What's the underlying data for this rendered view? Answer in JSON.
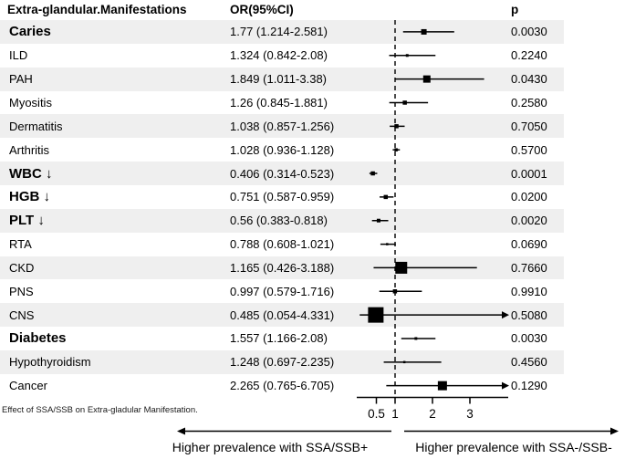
{
  "header": {
    "col_manifestation": "Extra-glandular.Manifestations",
    "col_or": "OR(95%CI)",
    "col_p": "p"
  },
  "footnote": "Effect of SSA/SSB on Extra-gladular Manifestation.",
  "axis_arrows": {
    "left_label": "Higher prevalence with SSA/SSB+",
    "right_label": "Higher prevalence with SSA-/SSB-"
  },
  "colors": {
    "band": "#efefef",
    "text": "#000000",
    "marker": "#000000",
    "line": "#000000"
  },
  "chart_data": {
    "type": "forest",
    "title": "Effect of SSA/SSB on Extra-glandular Manifestation",
    "x_scale": "linear",
    "x_ticks": [
      0.5,
      1,
      2,
      3
    ],
    "x_tick_labels": [
      "0.5",
      "1",
      "2",
      "3"
    ],
    "reference_line": 1,
    "x_range_shown": [
      0.39,
      4.0
    ],
    "rows": [
      {
        "label": "Caries",
        "bold": true,
        "or": 1.77,
        "ci_low": 1.214,
        "ci_high": 2.581,
        "or_text": "1.77 (1.214-2.581)",
        "p": "0.0030",
        "marker_size": 6
      },
      {
        "label": "ILD",
        "bold": false,
        "or": 1.324,
        "ci_low": 0.842,
        "ci_high": 2.08,
        "or_text": "1.324 (0.842-2.08)",
        "p": "0.2240",
        "marker_size": 3
      },
      {
        "label": "PAH",
        "bold": false,
        "or": 1.849,
        "ci_low": 1.011,
        "ci_high": 3.38,
        "or_text": "1.849 (1.011-3.38)",
        "p": "0.0430",
        "marker_size": 8
      },
      {
        "label": "Myositis",
        "bold": false,
        "or": 1.26,
        "ci_low": 0.845,
        "ci_high": 1.881,
        "or_text": "1.26 (0.845-1.881)",
        "p": "0.2580",
        "marker_size": 4.5
      },
      {
        "label": "Dermatitis",
        "bold": false,
        "or": 1.038,
        "ci_low": 0.857,
        "ci_high": 1.256,
        "or_text": "1.038 (0.857-1.256)",
        "p": "0.7050",
        "marker_size": 4.5
      },
      {
        "label": "Arthritis",
        "bold": false,
        "or": 1.028,
        "ci_low": 0.936,
        "ci_high": 1.128,
        "or_text": "1.028 (0.936-1.128)",
        "p": "0.5700",
        "marker_size": 3.5
      },
      {
        "label": "WBC ↓",
        "bold": true,
        "or": 0.406,
        "ci_low": 0.314,
        "ci_high": 0.523,
        "or_text": "0.406 (0.314-0.523)",
        "p": "0.0001",
        "marker_size": 4.5
      },
      {
        "label": "HGB ↓",
        "bold": true,
        "or": 0.751,
        "ci_low": 0.587,
        "ci_high": 0.959,
        "or_text": "0.751 (0.587-0.959)",
        "p": "0.0200",
        "marker_size": 4.5
      },
      {
        "label": "PLT ↓",
        "bold": true,
        "or": 0.56,
        "ci_low": 0.383,
        "ci_high": 0.818,
        "or_text": "0.56 (0.383-0.818)",
        "p": "0.0020",
        "marker_size": 4
      },
      {
        "label": "RTA",
        "bold": false,
        "or": 0.788,
        "ci_low": 0.608,
        "ci_high": 1.021,
        "or_text": "0.788 (0.608-1.021)",
        "p": "0.0690",
        "marker_size": 2.5
      },
      {
        "label": "CKD",
        "bold": false,
        "or": 1.165,
        "ci_low": 0.426,
        "ci_high": 3.188,
        "or_text": "1.165 (0.426-3.188)",
        "p": "0.7660",
        "marker_size": 13
      },
      {
        "label": "PNS",
        "bold": false,
        "or": 0.997,
        "ci_low": 0.579,
        "ci_high": 1.716,
        "or_text": "0.997 (0.579-1.716)",
        "p": "0.9910",
        "marker_size": 4.5
      },
      {
        "label": "CNS",
        "bold": false,
        "or": 0.485,
        "ci_low": 0.054,
        "ci_high": 4.331,
        "or_text": "0.485 (0.054-4.331)",
        "p": "0.5080",
        "marker_size": 17
      },
      {
        "label": "Diabetes",
        "bold": true,
        "or": 1.557,
        "ci_low": 1.166,
        "ci_high": 2.08,
        "or_text": "1.557 (1.166-2.08)",
        "p": "0.0030",
        "marker_size": 3
      },
      {
        "label": "Hypothyroidism",
        "bold": false,
        "or": 1.248,
        "ci_low": 0.697,
        "ci_high": 2.235,
        "or_text": "1.248 (0.697-2.235)",
        "p": "0.4560",
        "marker_size": 2.5
      },
      {
        "label": "Cancer",
        "bold": false,
        "or": 2.265,
        "ci_low": 0.765,
        "ci_high": 6.705,
        "or_text": "2.265 (0.765-6.705)",
        "p": "0.1290",
        "marker_size": 10
      }
    ]
  }
}
